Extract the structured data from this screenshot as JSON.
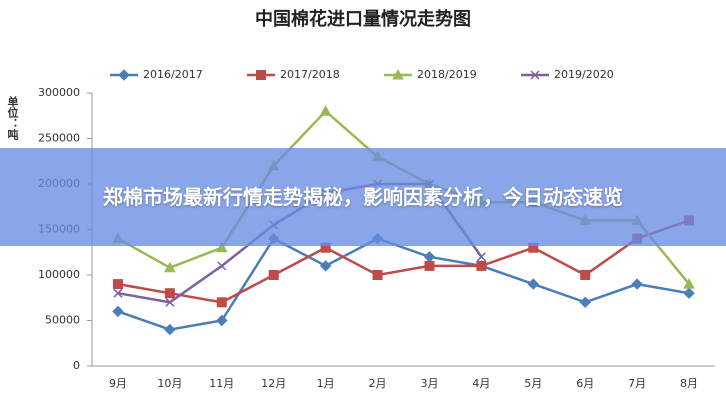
{
  "chart_data": {
    "type": "line",
    "title": "中国棉花进口量情况走势图",
    "y_label": "单位：吨",
    "categories": [
      "9月",
      "10月",
      "11月",
      "12月",
      "1月",
      "2月",
      "3月",
      "4月",
      "5月",
      "6月",
      "7月",
      "8月"
    ],
    "series": [
      {
        "name": "2016/2017",
        "color": "#4a7ebb",
        "marker": "diamond",
        "values": [
          60000,
          40000,
          50000,
          140000,
          110000,
          140000,
          120000,
          110000,
          90000,
          70000,
          90000,
          80000
        ]
      },
      {
        "name": "2017/2018",
        "color": "#be4b48",
        "marker": "square",
        "values": [
          90000,
          80000,
          70000,
          100000,
          130000,
          100000,
          110000,
          110000,
          130000,
          100000,
          140000,
          160000
        ]
      },
      {
        "name": "2018/2019",
        "color": "#98b954",
        "marker": "triangle",
        "values": [
          140000,
          108000,
          130000,
          220000,
          280000,
          230000,
          200000,
          180000,
          180000,
          160000,
          160000,
          90000
        ]
      },
      {
        "name": "2019/2020",
        "color": "#7d60a0",
        "marker": "x",
        "values": [
          80000,
          70000,
          110000,
          155000,
          190000,
          200000,
          200000,
          120000,
          null,
          null,
          null,
          null
        ]
      }
    ],
    "ylim": [
      0,
      300000
    ],
    "yticks": [
      0,
      50000,
      100000,
      150000,
      200000,
      250000,
      300000
    ],
    "grid": false,
    "legend": "top",
    "banner": "郑棉市场最新行情走势揭秘，影响因素分析，今日动态速览"
  }
}
